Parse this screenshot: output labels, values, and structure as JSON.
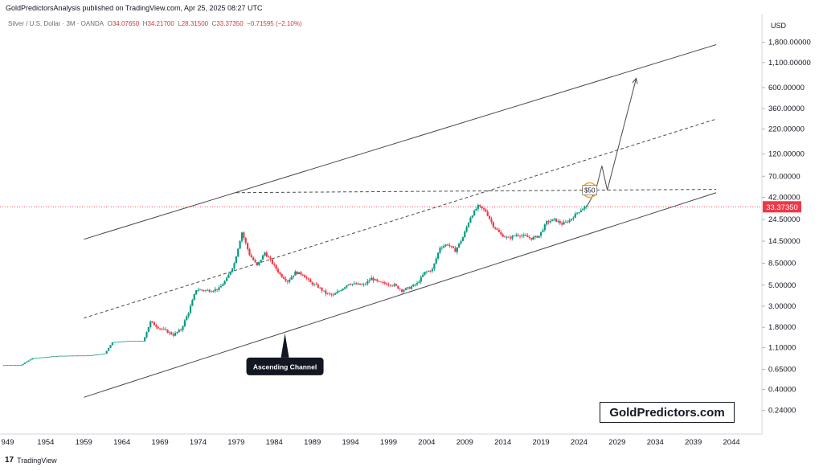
{
  "publisher_line": "GoldPredictorsAnalysis published on TradingView.com, Apr 25, 2025 08:27 UTC",
  "legend": {
    "symbol": "Silver / U.S. Dollar · 3M · OANDA",
    "open_label": "O",
    "open": "34.07650",
    "high_label": "H",
    "high": "34.21700",
    "low_label": "L",
    "low": "28.31500",
    "close_label": "C",
    "close": "33.37350",
    "change": "−0.71595 (−2.10%)"
  },
  "currency": "USD",
  "brand_watermark": "GoldPredictors.com",
  "footer": {
    "logo": "17",
    "name": "TradingView"
  },
  "colors": {
    "up": "#089981",
    "down": "#f23645",
    "last_price": "#f23645",
    "lines": "#4a4a4a",
    "annotation_bg": "#131722",
    "highlight": "#f5a623"
  },
  "chart_data": {
    "type": "candlestick",
    "y_scale": "log",
    "ylim": [
      0.2,
      2300
    ],
    "x_range": [
      1948,
      2048
    ],
    "y_ticks": [
      "1,800.00000",
      "1,100.00000",
      "600.00000",
      "360.00000",
      "220.00000",
      "120.00000",
      "70.00000",
      "42.00000",
      "24.50000",
      "14.50000",
      "8.50000",
      "5.00000",
      "3.00000",
      "1.80000",
      "1.10000",
      "0.65000",
      "0.40000",
      "0.24000"
    ],
    "x_ticks": [
      "949",
      "1954",
      "1959",
      "1964",
      "1969",
      "1974",
      "1979",
      "1984",
      "1989",
      "1994",
      "1999",
      "2004",
      "2009",
      "2014",
      "2019",
      "2024",
      "2029",
      "2034",
      "2039",
      "2044"
    ],
    "last_price": "33.37350",
    "annotations": {
      "channel_label": "Ascending Channel",
      "target_label": "$50"
    },
    "price_path": [
      [
        1948.5,
        0.72
      ],
      [
        1951,
        0.72
      ],
      [
        1952.5,
        0.85
      ],
      [
        1956,
        0.9
      ],
      [
        1960,
        0.91
      ],
      [
        1962,
        0.95
      ],
      [
        1963,
        1.25
      ],
      [
        1965,
        1.29
      ],
      [
        1967,
        1.29
      ],
      [
        1968,
        2.05
      ],
      [
        1969,
        1.8
      ],
      [
        1970,
        1.65
      ],
      [
        1971,
        1.5
      ],
      [
        1972,
        1.7
      ],
      [
        1973,
        2.6
      ],
      [
        1974,
        4.5
      ],
      [
        1975,
        4.4
      ],
      [
        1976,
        4.4
      ],
      [
        1977,
        4.6
      ],
      [
        1978,
        5.8
      ],
      [
        1979,
        8.5
      ],
      [
        1980,
        18.0
      ],
      [
        1981,
        10.5
      ],
      [
        1982,
        8.0
      ],
      [
        1983,
        11.0
      ],
      [
        1984,
        8.5
      ],
      [
        1985,
        6.5
      ],
      [
        1986,
        5.5
      ],
      [
        1987,
        6.8
      ],
      [
        1988,
        6.5
      ],
      [
        1989,
        5.3
      ],
      [
        1990,
        4.8
      ],
      [
        1991,
        4.1
      ],
      [
        1992,
        3.9
      ],
      [
        1993,
        4.5
      ],
      [
        1994,
        5.2
      ],
      [
        1995,
        5.1
      ],
      [
        1996,
        5.0
      ],
      [
        1997,
        5.9
      ],
      [
        1998,
        5.3
      ],
      [
        1999,
        5.2
      ],
      [
        2000,
        5.0
      ],
      [
        2001,
        4.4
      ],
      [
        2002,
        4.7
      ],
      [
        2003,
        5.2
      ],
      [
        2004,
        6.8
      ],
      [
        2005,
        7.3
      ],
      [
        2006,
        12.5
      ],
      [
        2007,
        13.5
      ],
      [
        2008,
        11.5
      ],
      [
        2009,
        16.0
      ],
      [
        2010,
        26.0
      ],
      [
        2011,
        34.0
      ],
      [
        2012,
        30.0
      ],
      [
        2013,
        21.0
      ],
      [
        2014,
        17.0
      ],
      [
        2015,
        15.5
      ],
      [
        2016,
        17.0
      ],
      [
        2017,
        16.5
      ],
      [
        2018,
        15.5
      ],
      [
        2019,
        16.5
      ],
      [
        2020,
        23.0
      ],
      [
        2021,
        24.5
      ],
      [
        2022,
        22.0
      ],
      [
        2023,
        24.0
      ],
      [
        2024,
        29.0
      ],
      [
        2025,
        33.37
      ]
    ],
    "lines": {
      "upper_channel": [
        [
          1959,
          15.2
        ],
        [
          2042,
          1700
        ]
      ],
      "lower_channel": [
        [
          1959,
          0.33
        ],
        [
          2042,
          47
        ]
      ],
      "mid_dashed": [
        [
          1959,
          2.25
        ],
        [
          2042,
          280
        ]
      ],
      "resistance_dashed": [
        [
          1979,
          47
        ],
        [
          2042,
          51
        ]
      ],
      "forecast_path": [
        [
          2025,
          33.37
        ],
        [
          2026.2,
          50
        ],
        [
          2027,
          90
        ],
        [
          2027.7,
          50
        ],
        [
          2031.5,
          750
        ]
      ]
    }
  }
}
